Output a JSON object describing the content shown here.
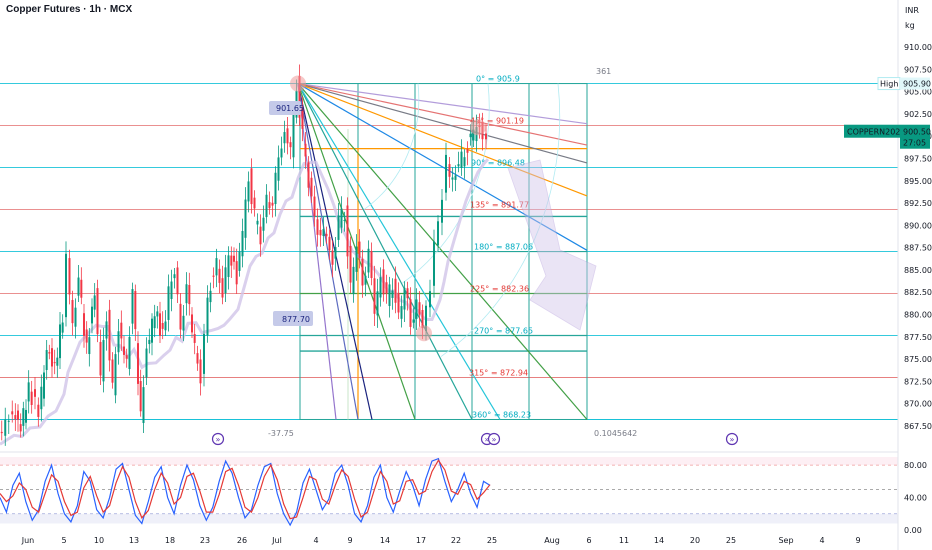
{
  "header": {
    "title": "Copper Futures · 1h · MCX"
  },
  "price_axis": {
    "currency": "INR",
    "unit": "kg"
  },
  "colors": {
    "up": "#089981",
    "down": "#f23645",
    "teal": "#26a69a",
    "red": "#e57373",
    "cyan": "#00bcd4",
    "orange": "#ff9800",
    "green": "#43a047",
    "purple": "#9575cd",
    "lavender": "#b39ddb",
    "navy": "#1a237e",
    "gray": "#787b86"
  },
  "chart_data": [
    {
      "type": "candlestick",
      "symbol": "Copper Futures",
      "interval": "1h",
      "exchange": "MCX",
      "ylim": [
        866.5,
        912
      ],
      "yticks": [
        910.0,
        907.5,
        905.0,
        902.5,
        900.0,
        897.5,
        895.0,
        892.5,
        890.0,
        887.5,
        885.0,
        882.5,
        880.0,
        877.5,
        875.0,
        872.5,
        870.0,
        867.5
      ],
      "xticks": [
        "Jun",
        "5",
        "10",
        "13",
        "18",
        "23",
        "26",
        "Jul",
        "4",
        "9",
        "14",
        "17",
        "22",
        "25",
        "Aug",
        "6",
        "11",
        "14",
        "20",
        "25",
        "Sep",
        "4",
        "9"
      ],
      "last_price": {
        "symbol": "COPPERN2025",
        "price": "900.50",
        "countdown": "27:05",
        "value": 900.5
      },
      "high_label": {
        "text": "High",
        "value": "905.90"
      },
      "annotations": {
        "swing_high": "901.65",
        "swing_low": "877.70",
        "box_left_number": "-37.75",
        "box_right_number": "0.1045642",
        "box_top_number": "361"
      },
      "gann_levels": [
        {
          "label": "0° = 905.9",
          "value": 905.9,
          "color": "cyan"
        },
        {
          "label": "45° = 901.19",
          "value": 901.19,
          "color": "red"
        },
        {
          "label": "90° = 896.48",
          "value": 896.48,
          "color": "cyan"
        },
        {
          "label": "135° = 891.77",
          "value": 891.77,
          "color": "red"
        },
        {
          "label": "180° = 887.06",
          "value": 887.06,
          "color": "cyan"
        },
        {
          "label": "225° = 882.36",
          "value": 882.36,
          "color": "red"
        },
        {
          "label": "270° = 877.65",
          "value": 877.65,
          "color": "cyan"
        },
        {
          "label": "315° = 872.94",
          "value": 872.94,
          "color": "red"
        },
        {
          "label": "360° = 868.23",
          "value": 868.23,
          "color": "cyan"
        }
      ],
      "price_series": [
        [
          0,
          866.8
        ],
        [
          14,
          868.8
        ],
        [
          22,
          867.4
        ],
        [
          30,
          871.5
        ],
        [
          40,
          869.2
        ],
        [
          48,
          876.0
        ],
        [
          56,
          874.0
        ],
        [
          64,
          880.0
        ],
        [
          68,
          886.0
        ],
        [
          74,
          879.0
        ],
        [
          80,
          883.5
        ],
        [
          88,
          876.0
        ],
        [
          96,
          882.5
        ],
        [
          102,
          873.0
        ],
        [
          108,
          880.0
        ],
        [
          114,
          871.5
        ],
        [
          120,
          878.5
        ],
        [
          128,
          874.5
        ],
        [
          134,
          882.0
        ],
        [
          142,
          868.5
        ],
        [
          148,
          876.0
        ],
        [
          156,
          880.5
        ],
        [
          164,
          877.5
        ],
        [
          170,
          882.5
        ],
        [
          176,
          884.5
        ],
        [
          182,
          879.0
        ],
        [
          188,
          882.5
        ],
        [
          196,
          876.5
        ],
        [
          202,
          872.5
        ],
        [
          206,
          878.5
        ],
        [
          212,
          883.5
        ],
        [
          218,
          886.0
        ],
        [
          224,
          881.5
        ],
        [
          230,
          887.5
        ],
        [
          238,
          884.0
        ],
        [
          244,
          889.5
        ],
        [
          250,
          895.5
        ],
        [
          256,
          891.0
        ],
        [
          262,
          888.5
        ],
        [
          268,
          893.5
        ],
        [
          274,
          891.5
        ],
        [
          280,
          898.5
        ],
        [
          286,
          900.0
        ],
        [
          292,
          898.5
        ],
        [
          298,
          905.9
        ],
        [
          304,
          900.0
        ],
        [
          310,
          894.5
        ],
        [
          316,
          891.5
        ],
        [
          322,
          888.0
        ],
        [
          328,
          889.5
        ],
        [
          334,
          885.5
        ],
        [
          340,
          890.5
        ],
        [
          346,
          891.5
        ],
        [
          352,
          883.0
        ],
        [
          358,
          887.5
        ],
        [
          364,
          884.0
        ],
        [
          370,
          886.5
        ],
        [
          376,
          880.5
        ],
        [
          382,
          884.5
        ],
        [
          388,
          881.5
        ],
        [
          394,
          883.5
        ],
        [
          400,
          880.0
        ],
        [
          406,
          882.5
        ],
        [
          412,
          879.5
        ],
        [
          418,
          881.0
        ],
        [
          424,
          878.5
        ],
        [
          428,
          880.5
        ],
        [
          432,
          883.5
        ],
        [
          436,
          887.5
        ],
        [
          440,
          890.5
        ],
        [
          444,
          893.5
        ],
        [
          448,
          897.0
        ],
        [
          454,
          895.0
        ],
        [
          460,
          896.5
        ],
        [
          466,
          898.5
        ],
        [
          472,
          899.5
        ],
        [
          478,
          901.2
        ],
        [
          484,
          900.2
        ],
        [
          488,
          900.5
        ]
      ],
      "oscillator": {
        "ylim": [
          0,
          90
        ],
        "yticks": [
          "80.00",
          "40.00",
          "0.00"
        ],
        "levels": [
          80,
          50,
          20
        ],
        "k": [
          40,
          22,
          55,
          70,
          35,
          12,
          25,
          60,
          80,
          45,
          20,
          10,
          30,
          72,
          60,
          25,
          15,
          40,
          75,
          82,
          50,
          18,
          8,
          35,
          65,
          78,
          40,
          20,
          55,
          80,
          62,
          30,
          12,
          28,
          60,
          85,
          70,
          40,
          15,
          25,
          55,
          78,
          82,
          45,
          20,
          6,
          22,
          58,
          75,
          50,
          25,
          38,
          70,
          80,
          55,
          20,
          10,
          30,
          65,
          80,
          40,
          22,
          48,
          72,
          55,
          30,
          62,
          85,
          88,
          60,
          35,
          50,
          70,
          45,
          28,
          60,
          55
        ],
        "d": [
          45,
          35,
          42,
          58,
          50,
          28,
          22,
          45,
          68,
          60,
          35,
          18,
          22,
          52,
          66,
          42,
          22,
          30,
          58,
          78,
          65,
          35,
          15,
          24,
          50,
          70,
          58,
          32,
          40,
          66,
          70,
          48,
          22,
          22,
          44,
          72,
          76,
          55,
          28,
          22,
          40,
          66,
          80,
          62,
          32,
          14,
          16,
          40,
          66,
          62,
          38,
          32,
          55,
          74,
          66,
          38,
          16,
          22,
          48,
          72,
          60,
          32,
          36,
          60,
          62,
          44,
          48,
          72,
          86,
          74,
          48,
          44,
          60,
          56,
          38,
          46,
          56
        ]
      }
    }
  ]
}
